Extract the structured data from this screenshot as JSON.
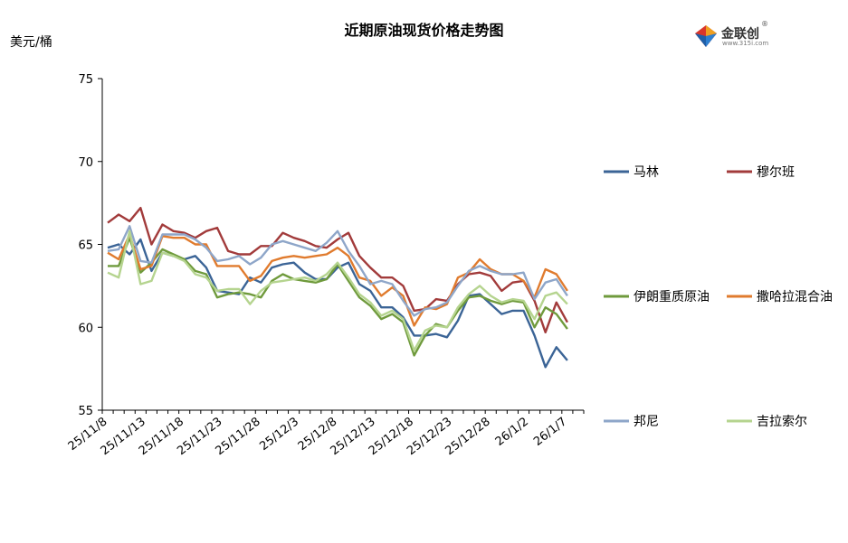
{
  "chart_data": {
    "type": "line",
    "title": "近期原油现货价格走势图",
    "ylabel": "美元/桶",
    "xlabel": "",
    "ylim": [
      55,
      75
    ],
    "yticks": [
      55,
      60,
      65,
      70,
      75
    ],
    "grid": false,
    "legend_position": "right",
    "xtick_labels": [
      "25/11/8",
      "25/11/13",
      "25/11/18",
      "25/11/23",
      "25/11/28",
      "25/12/3",
      "25/12/8",
      "25/12/13",
      "25/12/18",
      "25/12/23",
      "25/12/28",
      "26/1/2",
      "26/1/7"
    ],
    "x": [
      "2025-11-06",
      "2025-11-07",
      "2025-11-10",
      "2025-11-11",
      "2025-11-12",
      "2025-11-13",
      "2025-11-14",
      "2025-11-17",
      "2025-11-18",
      "2025-11-19",
      "2025-11-20",
      "2025-11-21",
      "2025-11-24",
      "2025-11-25",
      "2025-11-26",
      "2025-11-27",
      "2025-11-28",
      "2025-12-01",
      "2025-12-02",
      "2025-12-03",
      "2025-12-04",
      "2025-12-05",
      "2025-12-08",
      "2025-12-09",
      "2025-12-10",
      "2025-12-11",
      "2025-12-12",
      "2025-12-15",
      "2025-12-16",
      "2025-12-17",
      "2025-12-18",
      "2025-12-19",
      "2025-12-22",
      "2025-12-23",
      "2025-12-24",
      "2025-12-26",
      "2025-12-29",
      "2025-12-30",
      "2025-12-31",
      "2026-01-02",
      "2026-01-05",
      "2026-01-06",
      "2026-01-07",
      "2026-01-08"
    ],
    "series": [
      {
        "name": "马林",
        "color": "#3b6496",
        "values": [
          64.8,
          65.0,
          64.4,
          65.3,
          63.4,
          64.5,
          64.3,
          64.1,
          64.3,
          63.6,
          62.2,
          62.1,
          62.0,
          63.0,
          62.7,
          63.6,
          63.8,
          63.9,
          63.3,
          62.9,
          62.9,
          63.6,
          63.9,
          62.6,
          62.2,
          61.2,
          61.2,
          60.6,
          59.5,
          59.5,
          59.6,
          59.4,
          60.4,
          61.9,
          62.0,
          61.4,
          60.8,
          61.0,
          61.0,
          59.5,
          57.6,
          58.8,
          58.0,
          null
        ]
      },
      {
        "name": "穆尔班",
        "color": "#a23b3b",
        "values": [
          66.3,
          66.8,
          66.4,
          67.2,
          65.0,
          66.2,
          65.8,
          65.7,
          65.4,
          65.8,
          66.0,
          64.6,
          64.4,
          64.4,
          64.9,
          64.9,
          65.7,
          65.4,
          65.2,
          64.9,
          64.8,
          65.3,
          65.7,
          64.3,
          63.6,
          63.0,
          63.0,
          62.5,
          61.0,
          61.1,
          61.7,
          61.6,
          62.6,
          63.2,
          63.3,
          63.1,
          62.2,
          62.7,
          62.8,
          61.6,
          59.7,
          61.5,
          60.3,
          null
        ]
      },
      {
        "name": "伊朗重质原油",
        "color": "#6f9a3c",
        "values": [
          63.7,
          63.7,
          65.4,
          63.3,
          63.9,
          64.7,
          64.4,
          64.1,
          63.4,
          63.2,
          61.8,
          62.0,
          62.1,
          62.0,
          61.8,
          62.8,
          63.2,
          62.9,
          62.8,
          62.7,
          62.9,
          63.8,
          62.8,
          61.8,
          61.3,
          60.5,
          60.8,
          60.3,
          58.3,
          59.5,
          60.2,
          60.0,
          61.0,
          61.8,
          61.9,
          61.6,
          61.4,
          61.6,
          61.5,
          60.0,
          61.2,
          60.8,
          59.9,
          null
        ]
      },
      {
        "name": "撒哈拉混合油",
        "color": "#e07b2e",
        "values": [
          64.5,
          64.1,
          65.6,
          63.5,
          63.7,
          65.5,
          65.4,
          65.4,
          65.0,
          65.0,
          63.7,
          63.7,
          63.7,
          62.8,
          63.1,
          64.0,
          64.2,
          64.3,
          64.2,
          64.3,
          64.4,
          64.8,
          64.3,
          63.0,
          62.8,
          61.9,
          62.4,
          61.9,
          60.1,
          61.2,
          61.1,
          61.4,
          63.0,
          63.3,
          64.1,
          63.5,
          63.2,
          63.2,
          62.8,
          61.8,
          63.5,
          63.2,
          62.2,
          null
        ]
      },
      {
        "name": "邦尼",
        "color": "#8ea6c9",
        "values": [
          64.6,
          64.7,
          66.1,
          64.0,
          63.9,
          65.6,
          65.6,
          65.6,
          65.3,
          64.8,
          64.0,
          64.1,
          64.3,
          63.8,
          64.2,
          65.0,
          65.2,
          65.0,
          64.8,
          64.6,
          65.1,
          65.8,
          64.6,
          63.7,
          62.6,
          62.8,
          62.6,
          61.6,
          60.7,
          61.1,
          61.2,
          61.5,
          62.5,
          63.4,
          63.7,
          63.4,
          63.2,
          63.2,
          63.3,
          61.7,
          62.7,
          62.9,
          61.9,
          null
        ]
      },
      {
        "name": "吉拉索尔",
        "color": "#b5d48f",
        "values": [
          63.3,
          63.0,
          65.8,
          62.6,
          62.8,
          64.5,
          64.3,
          64.0,
          63.2,
          63.0,
          62.2,
          62.3,
          62.3,
          61.4,
          62.2,
          62.7,
          62.8,
          62.9,
          63.0,
          62.8,
          63.2,
          63.9,
          63.0,
          62.0,
          61.5,
          60.7,
          61.0,
          60.5,
          58.6,
          59.8,
          60.1,
          60.0,
          61.2,
          62.0,
          62.5,
          61.9,
          61.5,
          61.7,
          61.6,
          60.5,
          61.9,
          62.1,
          61.4,
          null
        ]
      }
    ]
  }
}
